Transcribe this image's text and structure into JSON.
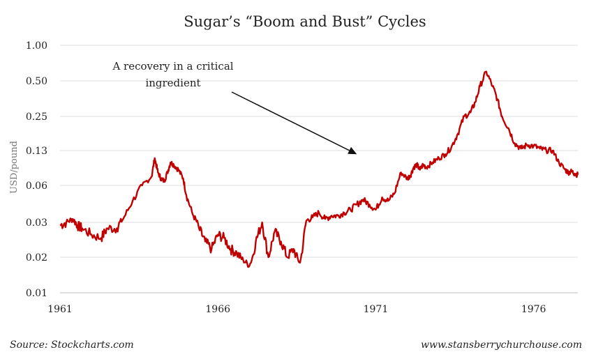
{
  "chart_data": {
    "type": "line",
    "title": "Sugar’s “Boom and Bust” Cycles",
    "xlabel": "",
    "ylabel": "USD/pound",
    "yscale": "log",
    "ylim": [
      0.01,
      1.0
    ],
    "xlim": [
      1961.0,
      1977.4
    ],
    "grid": true,
    "y_ticks": [
      1.0,
      0.5,
      0.25,
      0.13,
      0.06,
      0.03,
      0.02,
      0.01
    ],
    "y_tick_labels": [
      "1.00",
      "0.50",
      "0.25",
      "0.13",
      "0.06",
      "0.03",
      "0.02",
      "0.01"
    ],
    "x_ticks": [
      1961,
      1966,
      1971,
      1976
    ],
    "x_tick_labels": [
      "1961",
      "1966",
      "1971",
      "1976"
    ],
    "annotation": {
      "lines": [
        "A recovery in a critical",
        "ingredient"
      ],
      "arrow_target": [
        1970.4,
        0.12
      ]
    },
    "line_color": "#c00000",
    "series": [
      {
        "x": [
          1961.0,
          1961.2,
          1961.4,
          1961.55,
          1961.7,
          1962.0,
          1962.3,
          1962.5,
          1962.8,
          1963.0,
          1963.3,
          1963.6,
          1963.9,
          1964.0,
          1964.1,
          1964.2,
          1964.3,
          1964.4,
          1964.5,
          1964.6,
          1964.75,
          1964.9,
          1965.0,
          1965.2,
          1965.4,
          1965.6,
          1965.8,
          1966.0,
          1966.2,
          1966.4,
          1966.6,
          1966.8,
          1967.0,
          1967.2,
          1967.4,
          1967.6,
          1967.8,
          1968.0,
          1968.2,
          1968.4,
          1968.6,
          1968.8,
          1969.0,
          1969.2,
          1969.4,
          1969.6,
          1969.8,
          1970.0,
          1970.2,
          1970.4,
          1970.6,
          1970.8,
          1971.0,
          1971.2,
          1971.4,
          1971.6,
          1971.8,
          1972.0,
          1972.1,
          1972.2,
          1972.3,
          1972.4,
          1972.5,
          1972.6,
          1972.8,
          1973.0,
          1973.2,
          1973.4,
          1973.6,
          1973.8,
          1974.0,
          1974.15,
          1974.3,
          1974.5,
          1974.7,
          1974.85,
          1975.0,
          1975.2,
          1975.4,
          1975.6,
          1975.8,
          1976.0,
          1976.2,
          1976.4,
          1976.6,
          1976.8,
          1977.0,
          1977.1,
          1977.2,
          1977.3,
          1977.4
        ],
        "y": [
          0.029,
          0.03,
          0.032,
          0.029,
          0.028,
          0.026,
          0.025,
          0.028,
          0.028,
          0.032,
          0.045,
          0.06,
          0.073,
          0.11,
          0.08,
          0.07,
          0.066,
          0.08,
          0.1,
          0.095,
          0.085,
          0.07,
          0.05,
          0.035,
          0.028,
          0.024,
          0.022,
          0.026,
          0.025,
          0.022,
          0.021,
          0.019,
          0.017,
          0.024,
          0.03,
          0.02,
          0.027,
          0.024,
          0.02,
          0.022,
          0.018,
          0.031,
          0.033,
          0.036,
          0.032,
          0.034,
          0.034,
          0.036,
          0.038,
          0.042,
          0.046,
          0.042,
          0.038,
          0.048,
          0.045,
          0.052,
          0.08,
          0.07,
          0.075,
          0.09,
          0.095,
          0.085,
          0.095,
          0.09,
          0.1,
          0.11,
          0.12,
          0.14,
          0.18,
          0.25,
          0.27,
          0.33,
          0.45,
          0.6,
          0.45,
          0.35,
          0.25,
          0.2,
          0.15,
          0.135,
          0.145,
          0.142,
          0.135,
          0.13,
          0.13,
          0.1,
          0.085,
          0.08,
          0.082,
          0.078,
          0.076
        ]
      }
    ]
  },
  "footer": {
    "source": "Source: Stockcharts.com",
    "website": "www.stansberrychurchouse.com"
  }
}
